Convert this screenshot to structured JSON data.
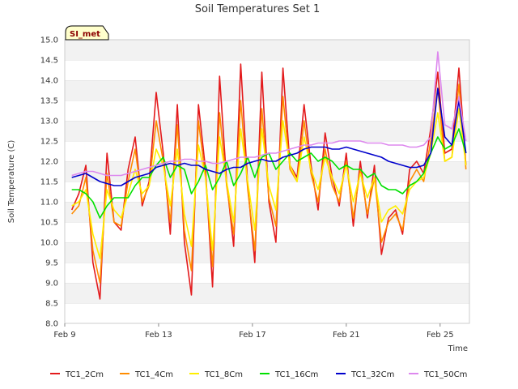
{
  "chart_data": {
    "type": "line",
    "title": "Soil Temperatures Set 1",
    "xlabel": "Time",
    "ylabel": "Soil Temperature (C)",
    "station_badge": "SI_met",
    "xlim": [
      0,
      17.25
    ],
    "ylim": [
      8.0,
      15.0
    ],
    "y_ticks": [
      "8.0",
      "8.5",
      "9.0",
      "9.5",
      "10.0",
      "10.5",
      "11.0",
      "11.5",
      "12.0",
      "12.5",
      "13.0",
      "13.5",
      "14.0",
      "14.5",
      "15.0"
    ],
    "x_ticks": [
      {
        "label": "Feb 9",
        "day": 0
      },
      {
        "label": "Feb 13",
        "day": 4
      },
      {
        "label": "Feb 17",
        "day": 8
      },
      {
        "label": "Feb 21",
        "day": 12
      },
      {
        "label": "Feb 25",
        "day": 16
      }
    ],
    "x": [
      0.3,
      0.6,
      0.9,
      1.2,
      1.5,
      1.8,
      2.1,
      2.4,
      2.7,
      3.0,
      3.3,
      3.6,
      3.9,
      4.2,
      4.5,
      4.8,
      5.1,
      5.4,
      5.7,
      6.0,
      6.3,
      6.6,
      6.9,
      7.2,
      7.5,
      7.8,
      8.1,
      8.4,
      8.7,
      9.0,
      9.3,
      9.6,
      9.9,
      10.2,
      10.5,
      10.8,
      11.1,
      11.4,
      11.7,
      12.0,
      12.3,
      12.6,
      12.9,
      13.2,
      13.5,
      13.8,
      14.1,
      14.4,
      14.7,
      15.0,
      15.3,
      15.6,
      15.9,
      16.2,
      16.5,
      16.8,
      17.1
    ],
    "series": [
      {
        "name": "TC1_2Cm",
        "color": "#e31a1c",
        "values": [
          10.8,
          11.2,
          11.9,
          9.5,
          8.6,
          12.2,
          10.5,
          10.3,
          11.8,
          12.6,
          10.9,
          11.5,
          13.7,
          12.2,
          10.2,
          13.4,
          10.0,
          8.7,
          13.4,
          11.8,
          8.9,
          14.1,
          11.5,
          9.9,
          14.4,
          11.4,
          9.5,
          14.2,
          11.0,
          10.0,
          14.3,
          11.9,
          11.6,
          13.4,
          11.9,
          10.8,
          12.7,
          11.6,
          10.9,
          12.2,
          10.4,
          12.0,
          10.6,
          11.9,
          9.7,
          10.6,
          10.8,
          10.2,
          11.8,
          12.0,
          11.7,
          12.8,
          14.2,
          12.2,
          12.3,
          14.3,
          11.9
        ]
      },
      {
        "name": "TC1_4Cm",
        "color": "#ff8c00",
        "values": [
          10.7,
          10.9,
          11.6,
          9.8,
          9.0,
          11.7,
          10.5,
          10.4,
          11.5,
          12.3,
          11.0,
          11.4,
          13.0,
          12.0,
          10.5,
          12.9,
          10.3,
          9.3,
          13.0,
          11.6,
          9.4,
          13.2,
          11.4,
          10.2,
          13.5,
          11.3,
          9.8,
          13.3,
          11.1,
          10.4,
          13.6,
          11.8,
          11.5,
          13.0,
          11.7,
          11.0,
          12.3,
          11.4,
          11.0,
          12.0,
          10.6,
          11.8,
          10.7,
          11.6,
          10.0,
          10.5,
          10.7,
          10.3,
          11.5,
          11.8,
          11.5,
          12.5,
          13.8,
          12.0,
          12.1,
          13.9,
          11.8
        ]
      },
      {
        "name": "TC1_8Cm",
        "color": "#ffee00",
        "values": [
          10.9,
          11.0,
          11.3,
          10.2,
          9.6,
          11.3,
          10.8,
          10.6,
          11.2,
          11.8,
          11.2,
          11.4,
          12.3,
          11.9,
          10.9,
          12.3,
          10.7,
          9.9,
          12.4,
          11.6,
          9.8,
          12.6,
          11.5,
          10.5,
          12.8,
          11.5,
          10.3,
          12.8,
          11.4,
          10.8,
          13.0,
          11.9,
          11.5,
          12.6,
          11.8,
          11.3,
          12.1,
          11.6,
          11.2,
          11.9,
          11.0,
          11.7,
          11.1,
          11.6,
          10.5,
          10.8,
          10.9,
          10.7,
          11.3,
          11.5,
          11.6,
          12.2,
          13.2,
          12.0,
          12.1,
          13.3,
          11.9
        ]
      },
      {
        "name": "TC1_16Cm",
        "color": "#00e000",
        "values": [
          11.3,
          11.3,
          11.2,
          11.0,
          10.6,
          10.9,
          11.1,
          11.1,
          11.1,
          11.4,
          11.6,
          11.6,
          11.9,
          12.1,
          11.6,
          11.9,
          11.8,
          11.2,
          11.5,
          11.9,
          11.3,
          11.6,
          12.0,
          11.4,
          11.7,
          12.1,
          11.6,
          12.1,
          12.2,
          11.8,
          12.0,
          12.2,
          12.0,
          12.1,
          12.2,
          12.0,
          12.1,
          12.0,
          11.8,
          11.9,
          11.8,
          11.8,
          11.6,
          11.7,
          11.4,
          11.3,
          11.3,
          11.2,
          11.4,
          11.5,
          11.7,
          12.2,
          12.6,
          12.3,
          12.4,
          12.8,
          12.2
        ]
      },
      {
        "name": "TC1_32Cm",
        "color": "#0000cc",
        "values": [
          11.6,
          11.65,
          11.7,
          11.6,
          11.5,
          11.45,
          11.4,
          11.4,
          11.5,
          11.6,
          11.65,
          11.7,
          11.85,
          11.9,
          11.95,
          11.9,
          11.95,
          11.9,
          11.9,
          11.8,
          11.75,
          11.7,
          11.8,
          11.85,
          11.85,
          11.95,
          12.0,
          12.05,
          12.0,
          12.0,
          12.1,
          12.15,
          12.2,
          12.3,
          12.35,
          12.35,
          12.35,
          12.3,
          12.3,
          12.35,
          12.3,
          12.25,
          12.2,
          12.15,
          12.1,
          12.0,
          11.95,
          11.9,
          11.85,
          11.85,
          11.9,
          12.2,
          13.8,
          12.6,
          12.4,
          13.5,
          12.2
        ]
      },
      {
        "name": "TC1_50Cm",
        "color": "#dd88ee",
        "values": [
          11.65,
          11.7,
          11.75,
          11.75,
          11.7,
          11.65,
          11.65,
          11.65,
          11.7,
          11.75,
          11.8,
          11.85,
          11.9,
          11.95,
          12.0,
          12.0,
          12.05,
          12.05,
          12.0,
          12.0,
          11.95,
          11.95,
          12.0,
          12.05,
          12.1,
          12.1,
          12.1,
          12.15,
          12.2,
          12.2,
          12.25,
          12.3,
          12.35,
          12.4,
          12.4,
          12.45,
          12.45,
          12.45,
          12.5,
          12.5,
          12.5,
          12.5,
          12.45,
          12.45,
          12.45,
          12.4,
          12.4,
          12.4,
          12.35,
          12.35,
          12.4,
          12.6,
          14.7,
          12.9,
          12.8,
          13.6,
          12.5
        ]
      }
    ],
    "legend_position": "bottom",
    "grid": true
  }
}
